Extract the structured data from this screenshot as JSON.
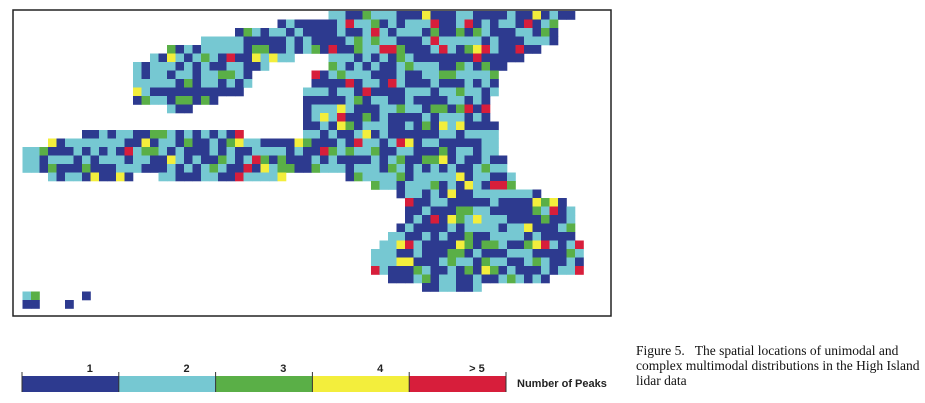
{
  "figure": {
    "legend": {
      "items": [
        {
          "label": "1",
          "color": "#2d3a8f"
        },
        {
          "label": "2",
          "color": "#76c8d2"
        },
        {
          "label": "3",
          "color": "#5aaf47"
        },
        {
          "label": "4",
          "color": "#f3ee3c"
        },
        {
          "label": "> 5",
          "color": "#d71e3b"
        }
      ],
      "title": "Number of Peaks"
    },
    "caption": {
      "label": "Figure 5.",
      "text": "The spatial locations of unimodal and complex multimodal distributions in the High Island lidar data"
    }
  }
}
